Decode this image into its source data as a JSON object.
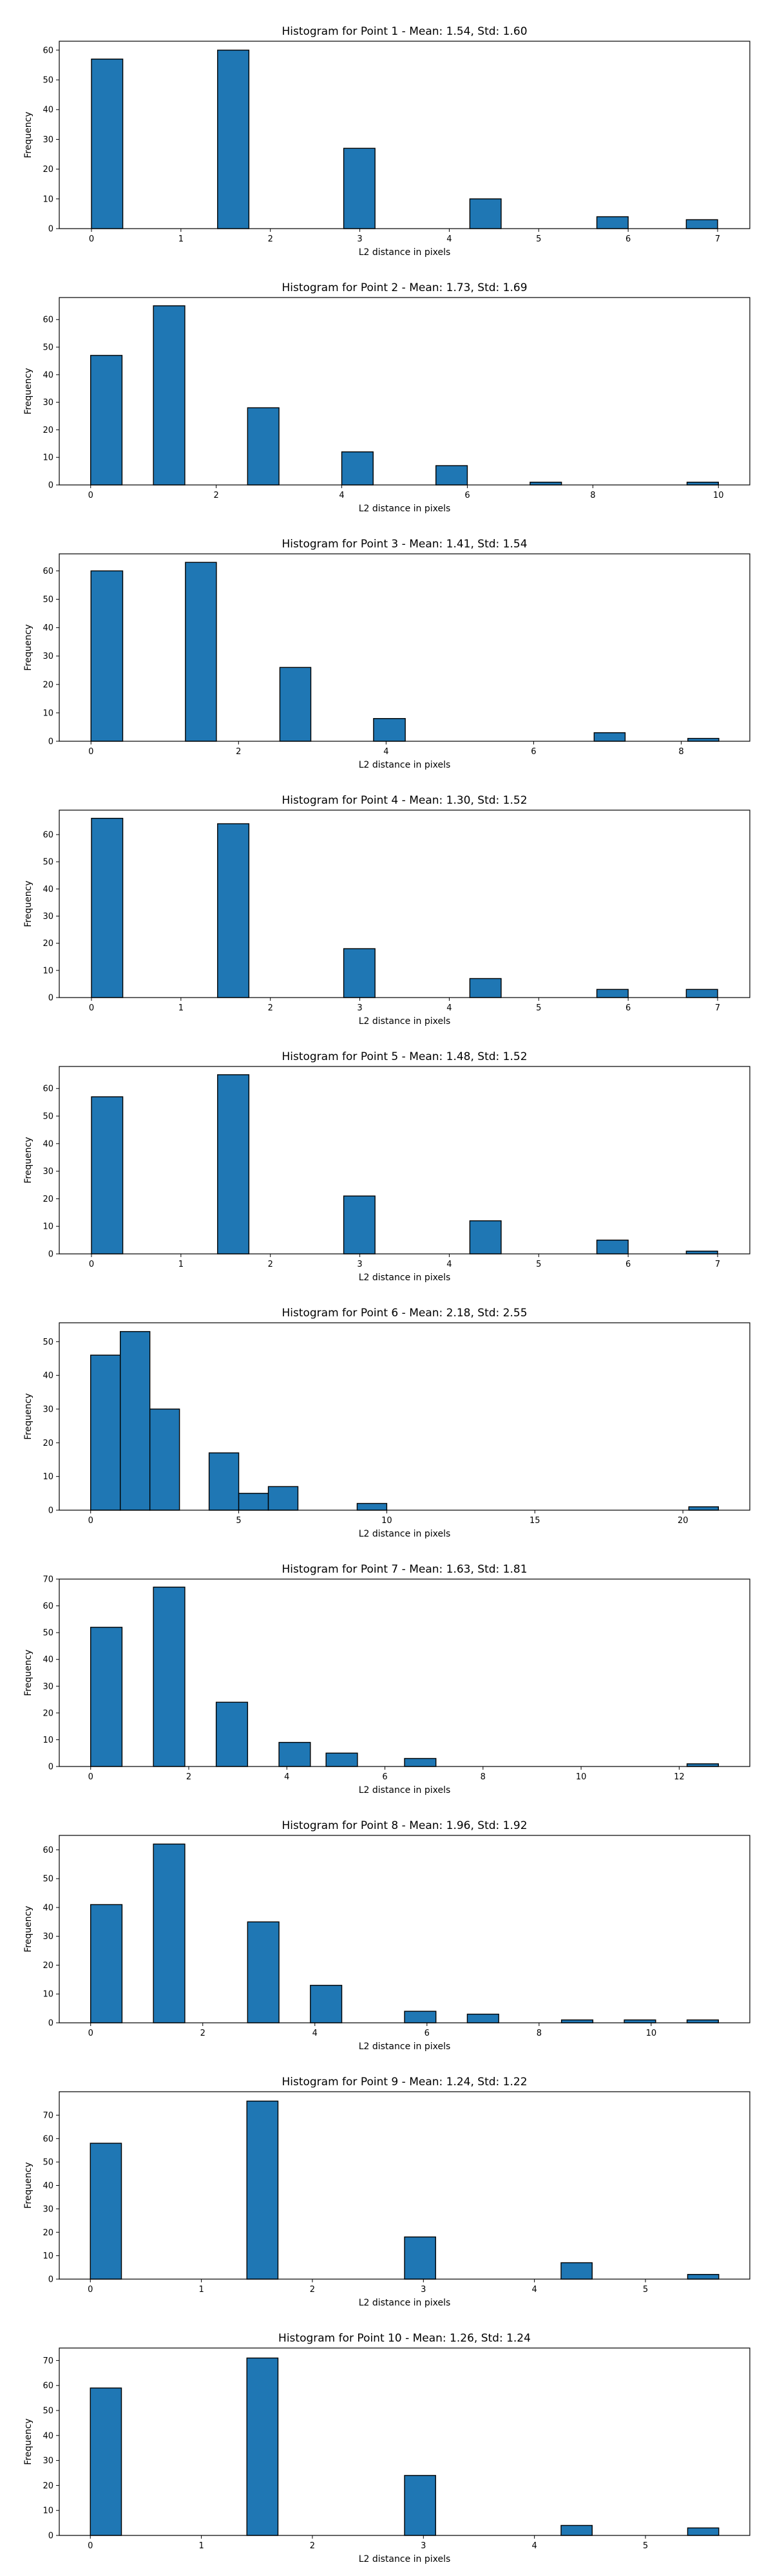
{
  "chart_data": [
    {
      "type": "bar",
      "title": "Histogram for Point 1 - Mean: 1.54, Std: 1.60",
      "xlabel": "L2 distance in pixels",
      "ylabel": "Frequency",
      "xlim": [
        -0.36,
        7.36
      ],
      "ylim": [
        0,
        63
      ],
      "xticks": [
        0,
        1,
        2,
        3,
        4,
        5,
        6,
        7
      ],
      "yticks": [
        0,
        10,
        20,
        30,
        40,
        50,
        60
      ],
      "grid": false,
      "bins": [
        {
          "x0": 0.0,
          "x1": 0.35,
          "count": 57
        },
        {
          "x0": 1.41,
          "x1": 1.76,
          "count": 60
        },
        {
          "x0": 2.82,
          "x1": 3.17,
          "count": 27
        },
        {
          "x0": 4.23,
          "x1": 4.58,
          "count": 10
        },
        {
          "x0": 5.65,
          "x1": 6.0,
          "count": 4
        },
        {
          "x0": 6.65,
          "x1": 7.0,
          "count": 3
        }
      ]
    },
    {
      "type": "bar",
      "title": "Histogram for Point 2 - Mean: 1.73, Std: 1.69",
      "xlabel": "L2 distance in pixels",
      "ylabel": "Frequency",
      "xlim": [
        -0.5,
        10.5
      ],
      "ylim": [
        0,
        68
      ],
      "xticks": [
        0,
        2,
        4,
        6,
        8,
        10
      ],
      "yticks": [
        0,
        10,
        20,
        30,
        40,
        50,
        60
      ],
      "grid": false,
      "bins": [
        {
          "x0": 0.0,
          "x1": 0.5,
          "count": 47
        },
        {
          "x0": 1.0,
          "x1": 1.5,
          "count": 65
        },
        {
          "x0": 2.5,
          "x1": 3.0,
          "count": 28
        },
        {
          "x0": 4.0,
          "x1": 4.5,
          "count": 12
        },
        {
          "x0": 5.5,
          "x1": 6.0,
          "count": 7
        },
        {
          "x0": 7.0,
          "x1": 7.5,
          "count": 1
        },
        {
          "x0": 9.5,
          "x1": 10.0,
          "count": 1
        }
      ]
    },
    {
      "type": "bar",
      "title": "Histogram for Point 3 - Mean: 1.41, Std: 1.54",
      "xlabel": "L2 distance in pixels",
      "ylabel": "Frequency",
      "xlim": [
        -0.43,
        8.93
      ],
      "ylim": [
        0,
        66
      ],
      "xticks": [
        0,
        2,
        4,
        6,
        8
      ],
      "yticks": [
        0,
        10,
        20,
        30,
        40,
        50,
        60
      ],
      "grid": false,
      "bins": [
        {
          "x0": 0.0,
          "x1": 0.43,
          "count": 60
        },
        {
          "x0": 1.28,
          "x1": 1.7,
          "count": 63
        },
        {
          "x0": 2.56,
          "x1": 2.98,
          "count": 26
        },
        {
          "x0": 3.83,
          "x1": 4.26,
          "count": 8
        },
        {
          "x0": 6.82,
          "x1": 7.24,
          "count": 3
        },
        {
          "x0": 8.09,
          "x1": 8.51,
          "count": 1
        }
      ]
    },
    {
      "type": "bar",
      "title": "Histogram for Point 4 - Mean: 1.30, Std: 1.52",
      "xlabel": "L2 distance in pixels",
      "ylabel": "Frequency",
      "xlim": [
        -0.36,
        7.36
      ],
      "ylim": [
        0,
        69
      ],
      "xticks": [
        0,
        1,
        2,
        3,
        4,
        5,
        6,
        7
      ],
      "yticks": [
        0,
        10,
        20,
        30,
        40,
        50,
        60
      ],
      "grid": false,
      "bins": [
        {
          "x0": 0.0,
          "x1": 0.35,
          "count": 66
        },
        {
          "x0": 1.41,
          "x1": 1.76,
          "count": 64
        },
        {
          "x0": 2.82,
          "x1": 3.17,
          "count": 18
        },
        {
          "x0": 4.23,
          "x1": 4.58,
          "count": 7
        },
        {
          "x0": 5.65,
          "x1": 6.0,
          "count": 3
        },
        {
          "x0": 6.65,
          "x1": 7.0,
          "count": 3
        }
      ]
    },
    {
      "type": "bar",
      "title": "Histogram for Point 5 - Mean: 1.48, Std: 1.52",
      "xlabel": "L2 distance in pixels",
      "ylabel": "Frequency",
      "xlim": [
        -0.36,
        7.36
      ],
      "ylim": [
        0,
        68
      ],
      "xticks": [
        0,
        1,
        2,
        3,
        4,
        5,
        6,
        7
      ],
      "yticks": [
        0,
        10,
        20,
        30,
        40,
        50,
        60
      ],
      "grid": false,
      "bins": [
        {
          "x0": 0.0,
          "x1": 0.35,
          "count": 57
        },
        {
          "x0": 1.41,
          "x1": 1.76,
          "count": 65
        },
        {
          "x0": 2.82,
          "x1": 3.17,
          "count": 21
        },
        {
          "x0": 4.23,
          "x1": 4.58,
          "count": 12
        },
        {
          "x0": 5.65,
          "x1": 6.0,
          "count": 5
        },
        {
          "x0": 6.65,
          "x1": 7.0,
          "count": 1
        }
      ]
    },
    {
      "type": "bar",
      "title": "Histogram for Point 6 - Mean: 2.18, Std: 2.55",
      "xlabel": "L2 distance in pixels",
      "ylabel": "Frequency",
      "xlim": [
        -1.06,
        22.26
      ],
      "ylim": [
        0,
        55.6
      ],
      "xticks": [
        0,
        5,
        10,
        15,
        20
      ],
      "yticks": [
        0,
        10,
        20,
        30,
        40,
        50
      ],
      "grid": false,
      "bins": [
        {
          "x0": 0.0,
          "x1": 1.0,
          "count": 46
        },
        {
          "x0": 1.0,
          "x1": 2.0,
          "count": 53
        },
        {
          "x0": 2.0,
          "x1": 3.0,
          "count": 30
        },
        {
          "x0": 4.0,
          "x1": 5.0,
          "count": 17
        },
        {
          "x0": 5.0,
          "x1": 6.0,
          "count": 5
        },
        {
          "x0": 6.0,
          "x1": 7.0,
          "count": 7
        },
        {
          "x0": 9.0,
          "x1": 10.0,
          "count": 2
        },
        {
          "x0": 20.2,
          "x1": 21.2,
          "count": 1
        }
      ]
    },
    {
      "type": "bar",
      "title": "Histogram for Point 7 - Mean: 1.63, Std: 1.81",
      "xlabel": "L2 distance in pixels",
      "ylabel": "Frequency",
      "xlim": [
        -0.64,
        13.44
      ],
      "ylim": [
        0,
        70
      ],
      "xticks": [
        0,
        2,
        4,
        6,
        8,
        10,
        12
      ],
      "yticks": [
        0,
        10,
        20,
        30,
        40,
        50,
        60,
        70
      ],
      "grid": false,
      "bins": [
        {
          "x0": 0.0,
          "x1": 0.64,
          "count": 52
        },
        {
          "x0": 1.28,
          "x1": 1.92,
          "count": 67
        },
        {
          "x0": 2.56,
          "x1": 3.2,
          "count": 24
        },
        {
          "x0": 3.84,
          "x1": 4.48,
          "count": 9
        },
        {
          "x0": 4.8,
          "x1": 5.44,
          "count": 5
        },
        {
          "x0": 6.4,
          "x1": 7.04,
          "count": 3
        },
        {
          "x0": 12.16,
          "x1": 12.8,
          "count": 1
        }
      ]
    },
    {
      "type": "bar",
      "title": "Histogram for Point 8 - Mean: 1.96, Std: 1.92",
      "xlabel": "L2 distance in pixels",
      "ylabel": "Frequency",
      "xlim": [
        -0.56,
        11.76
      ],
      "ylim": [
        0,
        65
      ],
      "xticks": [
        0,
        2,
        4,
        6,
        8,
        10
      ],
      "yticks": [
        0,
        10,
        20,
        30,
        40,
        50,
        60
      ],
      "grid": false,
      "bins": [
        {
          "x0": 0.0,
          "x1": 0.56,
          "count": 41
        },
        {
          "x0": 1.12,
          "x1": 1.68,
          "count": 62
        },
        {
          "x0": 2.8,
          "x1": 3.36,
          "count": 35
        },
        {
          "x0": 3.92,
          "x1": 4.48,
          "count": 13
        },
        {
          "x0": 5.6,
          "x1": 6.16,
          "count": 4
        },
        {
          "x0": 6.72,
          "x1": 7.28,
          "count": 3
        },
        {
          "x0": 8.4,
          "x1": 8.96,
          "count": 1
        },
        {
          "x0": 9.52,
          "x1": 10.08,
          "count": 1
        },
        {
          "x0": 10.64,
          "x1": 11.2,
          "count": 1
        }
      ]
    },
    {
      "type": "bar",
      "title": "Histogram for Point 9 - Mean: 1.24, Std: 1.22",
      "xlabel": "L2 distance in pixels",
      "ylabel": "Frequency",
      "xlim": [
        -0.28,
        5.94
      ],
      "ylim": [
        0,
        80
      ],
      "xticks": [
        0,
        1,
        2,
        3,
        4,
        5
      ],
      "yticks": [
        0,
        10,
        20,
        30,
        40,
        50,
        60,
        70
      ],
      "grid": false,
      "bins": [
        {
          "x0": 0.0,
          "x1": 0.28,
          "count": 58
        },
        {
          "x0": 1.41,
          "x1": 1.69,
          "count": 76
        },
        {
          "x0": 2.83,
          "x1": 3.11,
          "count": 18
        },
        {
          "x0": 4.24,
          "x1": 4.52,
          "count": 7
        },
        {
          "x0": 5.38,
          "x1": 5.66,
          "count": 2
        }
      ]
    },
    {
      "type": "bar",
      "title": "Histogram for Point 10 - Mean: 1.26, Std: 1.24",
      "xlabel": "L2 distance in pixels",
      "ylabel": "Frequency",
      "xlim": [
        -0.28,
        5.94
      ],
      "ylim": [
        0,
        75
      ],
      "xticks": [
        0,
        1,
        2,
        3,
        4,
        5
      ],
      "yticks": [
        0,
        10,
        20,
        30,
        40,
        50,
        60,
        70
      ],
      "grid": false,
      "bins": [
        {
          "x0": 0.0,
          "x1": 0.28,
          "count": 59
        },
        {
          "x0": 1.41,
          "x1": 1.69,
          "count": 71
        },
        {
          "x0": 2.83,
          "x1": 3.11,
          "count": 24
        },
        {
          "x0": 4.24,
          "x1": 4.52,
          "count": 4
        },
        {
          "x0": 5.38,
          "x1": 5.66,
          "count": 3
        }
      ]
    }
  ]
}
